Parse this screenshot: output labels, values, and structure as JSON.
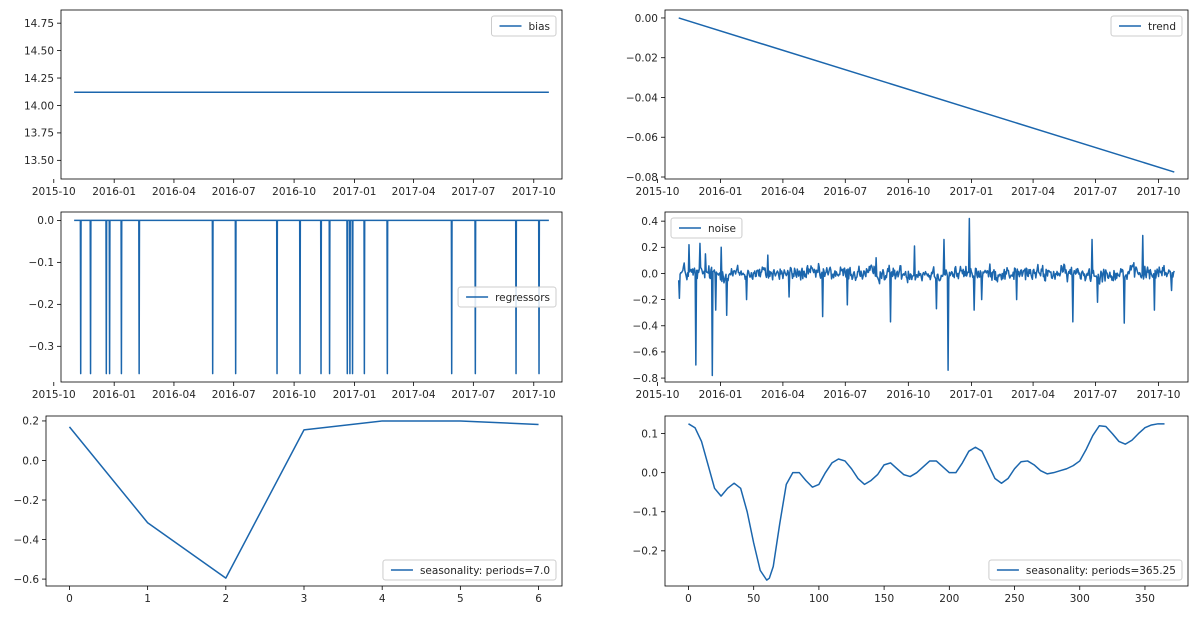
{
  "chart_data": [
    {
      "type": "line",
      "x_type": "date",
      "xlim": [
        "2015-10-12",
        "2017-11-13"
      ],
      "ylim": [
        13.33,
        14.87
      ],
      "xticks": [
        "2015-10",
        "2016-01",
        "2016-04",
        "2016-07",
        "2016-10",
        "2017-01",
        "2017-04",
        "2017-07",
        "2017-10"
      ],
      "yticks": [
        13.5,
        13.75,
        14.0,
        14.25,
        14.5,
        14.75
      ],
      "ytick_labels": [
        "13.50",
        "13.75",
        "14.00",
        "14.25",
        "14.50",
        "14.75"
      ],
      "legend_loc": "upper right",
      "series": [
        {
          "name": "bias",
          "x": [
            "2015-11-01",
            "2017-10-24"
          ],
          "y": [
            14.12,
            14.12
          ]
        }
      ]
    },
    {
      "type": "line",
      "x_type": "date",
      "xlim": [
        "2015-10-12",
        "2017-11-13"
      ],
      "ylim": [
        -0.081,
        0.004
      ],
      "xticks": [
        "2015-10",
        "2016-01",
        "2016-04",
        "2016-07",
        "2016-10",
        "2017-01",
        "2017-04",
        "2017-07",
        "2017-10"
      ],
      "yticks": [
        0.0,
        -0.02,
        -0.04,
        -0.06,
        -0.08
      ],
      "ytick_labels": [
        "0.00",
        "−0.02",
        "−0.04",
        "−0.06",
        "−0.08"
      ],
      "legend_loc": "upper right",
      "series": [
        {
          "name": "trend",
          "x": [
            "2015-11-01",
            "2017-10-24"
          ],
          "y": [
            0.0,
            -0.0775
          ]
        }
      ]
    },
    {
      "type": "line",
      "x_type": "date",
      "xlim": [
        "2015-10-12",
        "2017-11-13"
      ],
      "ylim": [
        -0.385,
        0.02
      ],
      "xticks": [
        "2015-10",
        "2016-01",
        "2016-04",
        "2016-07",
        "2016-10",
        "2017-01",
        "2017-04",
        "2017-07",
        "2017-10"
      ],
      "yticks": [
        0.0,
        -0.1,
        -0.2,
        -0.3
      ],
      "ytick_labels": [
        "0.0",
        "−0.1",
        "−0.2",
        "−0.3"
      ],
      "legend_loc": "center right",
      "series": [
        {
          "name": "regressors",
          "x": [
            "2015-11-01",
            "2017-10-24"
          ],
          "y": [
            0.0,
            0.0
          ],
          "spike_value": -0.365,
          "spike_dates": [
            "2015-11-11",
            "2015-11-26",
            "2015-12-20",
            "2015-12-25",
            "2016-01-12",
            "2016-02-08",
            "2016-05-30",
            "2016-07-04",
            "2016-09-05",
            "2016-10-10",
            "2016-11-11",
            "2016-11-24",
            "2016-12-21",
            "2016-12-25",
            "2016-12-29",
            "2017-01-16",
            "2017-02-20",
            "2017-05-29",
            "2017-07-04",
            "2017-09-04",
            "2017-10-09"
          ]
        }
      ]
    },
    {
      "type": "line",
      "x_type": "date",
      "xlim": [
        "2015-10-12",
        "2017-11-13"
      ],
      "ylim": [
        -0.83,
        0.47
      ],
      "xticks": [
        "2015-10",
        "2016-01",
        "2016-04",
        "2016-07",
        "2016-10",
        "2017-01",
        "2017-04",
        "2017-07",
        "2017-10"
      ],
      "yticks": [
        0.4,
        0.2,
        0.0,
        -0.2,
        -0.4,
        -0.6,
        -0.8
      ],
      "ytick_labels": [
        "0.4",
        "0.2",
        "0.0",
        "−0.2",
        "−0.4",
        "−0.6",
        "−0.8"
      ],
      "legend_loc": "upper left",
      "series": [
        {
          "name": "noise",
          "start": "2015-11-01",
          "end": "2017-10-24",
          "baseline_amplitude": 0.1,
          "events": [
            [
              "2015-11-02",
              -0.19
            ],
            [
              "2015-11-09",
              0.08
            ],
            [
              "2015-11-16",
              0.22
            ],
            [
              "2015-11-26",
              -0.7
            ],
            [
              "2015-12-02",
              0.23
            ],
            [
              "2015-12-10",
              0.15
            ],
            [
              "2015-12-20",
              -0.78
            ],
            [
              "2015-12-25",
              -0.28
            ],
            [
              "2016-01-02",
              0.2
            ],
            [
              "2016-01-10",
              -0.32
            ],
            [
              "2016-02-08",
              -0.2
            ],
            [
              "2016-03-10",
              0.14
            ],
            [
              "2016-04-10",
              -0.18
            ],
            [
              "2016-05-29",
              -0.33
            ],
            [
              "2016-07-04",
              -0.24
            ],
            [
              "2016-08-15",
              0.12
            ],
            [
              "2016-09-05",
              -0.37
            ],
            [
              "2016-10-10",
              0.21
            ],
            [
              "2016-11-11",
              -0.27
            ],
            [
              "2016-11-22",
              0.26
            ],
            [
              "2016-11-28",
              -0.74
            ],
            [
              "2016-12-29",
              0.42
            ],
            [
              "2017-01-05",
              -0.28
            ],
            [
              "2017-01-16",
              -0.2
            ],
            [
              "2017-03-08",
              -0.2
            ],
            [
              "2017-05-29",
              -0.37
            ],
            [
              "2017-06-26",
              0.26
            ],
            [
              "2017-07-04",
              -0.22
            ],
            [
              "2017-08-12",
              -0.38
            ],
            [
              "2017-09-08",
              0.29
            ],
            [
              "2017-09-25",
              -0.28
            ],
            [
              "2017-10-09",
              0.06
            ],
            [
              "2017-10-20",
              -0.13
            ]
          ]
        }
      ]
    },
    {
      "type": "line",
      "xlim": [
        -0.3,
        6.3
      ],
      "ylim": [
        -0.635,
        0.225
      ],
      "xticks": [
        0,
        1,
        2,
        3,
        4,
        5,
        6
      ],
      "yticks": [
        0.2,
        0.0,
        -0.2,
        -0.4,
        -0.6
      ],
      "ytick_labels": [
        "0.2",
        "0.0",
        "−0.2",
        "−0.4",
        "−0.6"
      ],
      "legend_loc": "lower right",
      "series": [
        {
          "name": "seasonality: periods=7.0",
          "x": [
            0,
            1,
            2,
            3,
            4,
            5,
            6
          ],
          "y": [
            0.17,
            -0.315,
            -0.595,
            0.155,
            0.2,
            0.2,
            0.182
          ]
        }
      ]
    },
    {
      "type": "line",
      "xlim": [
        -18,
        383
      ],
      "ylim": [
        -0.29,
        0.145
      ],
      "xticks": [
        0,
        50,
        100,
        150,
        200,
        250,
        300,
        350
      ],
      "yticks": [
        0.1,
        0.0,
        -0.1,
        -0.2
      ],
      "ytick_labels": [
        "0.1",
        "0.0",
        "−0.1",
        "−0.2"
      ],
      "legend_loc": "lower right",
      "series": [
        {
          "name": "seasonality: periods=365.25",
          "x": [
            0,
            5,
            10,
            15,
            20,
            25,
            30,
            35,
            40,
            45,
            50,
            55,
            60,
            62,
            65,
            70,
            75,
            80,
            85,
            90,
            95,
            100,
            105,
            110,
            115,
            120,
            125,
            130,
            135,
            140,
            145,
            150,
            155,
            160,
            165,
            170,
            175,
            180,
            185,
            190,
            195,
            200,
            205,
            210,
            215,
            220,
            225,
            230,
            235,
            240,
            245,
            250,
            255,
            260,
            265,
            270,
            275,
            280,
            285,
            290,
            295,
            300,
            305,
            310,
            315,
            320,
            325,
            330,
            335,
            340,
            345,
            350,
            355,
            360,
            365
          ],
          "y": [
            0.125,
            0.115,
            0.08,
            0.02,
            -0.04,
            -0.06,
            -0.04,
            -0.027,
            -0.04,
            -0.1,
            -0.18,
            -0.25,
            -0.275,
            -0.27,
            -0.24,
            -0.13,
            -0.03,
            0.0,
            0.0,
            -0.02,
            -0.037,
            -0.03,
            0.0,
            0.025,
            0.035,
            0.03,
            0.01,
            -0.015,
            -0.03,
            -0.02,
            -0.005,
            0.02,
            0.025,
            0.01,
            -0.005,
            -0.01,
            0.0,
            0.015,
            0.03,
            0.03,
            0.015,
            0.0,
            0.0,
            0.025,
            0.055,
            0.065,
            0.055,
            0.02,
            -0.015,
            -0.027,
            -0.015,
            0.01,
            0.028,
            0.03,
            0.02,
            0.005,
            -0.003,
            0.0,
            0.005,
            0.01,
            0.018,
            0.03,
            0.06,
            0.095,
            0.12,
            0.118,
            0.1,
            0.08,
            0.073,
            0.083,
            0.1,
            0.115,
            0.122,
            0.125,
            0.125
          ]
        }
      ]
    }
  ]
}
